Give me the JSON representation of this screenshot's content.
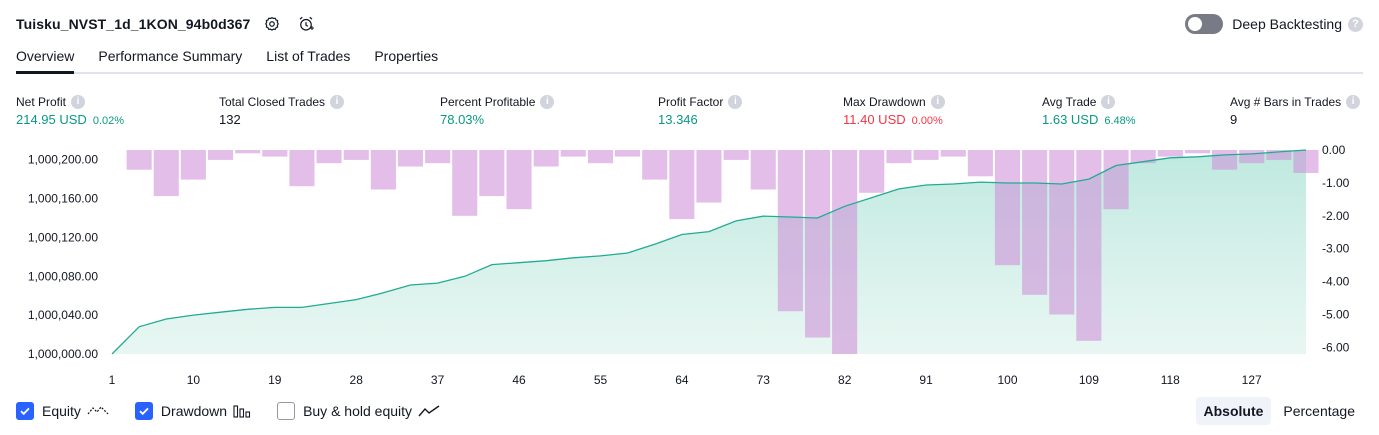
{
  "header": {
    "title": "Tuisku_NVST_1d_1KON_94b0d367",
    "settings_icon": "gear-icon",
    "alert_icon": "alarm-clock-plus-icon",
    "deep_backtesting_label": "Deep Backtesting",
    "deep_backtesting_on": false,
    "help_mark": "?"
  },
  "tabs": [
    {
      "label": "Overview",
      "active": true
    },
    {
      "label": "Performance Summary",
      "active": false
    },
    {
      "label": "List of Trades",
      "active": false
    },
    {
      "label": "Properties",
      "active": false
    }
  ],
  "metrics": {
    "info_mark": "i",
    "net_profit": {
      "label": "Net Profit",
      "value": "214.95 USD",
      "sub": "0.02%"
    },
    "total_closed_trades": {
      "label": "Total Closed Trades",
      "value": "132"
    },
    "percent_profitable": {
      "label": "Percent Profitable",
      "value": "78.03%"
    },
    "profit_factor": {
      "label": "Profit Factor",
      "value": "13.346"
    },
    "max_drawdown": {
      "label": "Max Drawdown",
      "value": "11.40 USD",
      "sub": "0.00%"
    },
    "avg_trade": {
      "label": "Avg Trade",
      "value": "1.63 USD",
      "sub": "6.48%"
    },
    "avg_bars": {
      "label": "Avg # Bars in Trades",
      "value": "9"
    }
  },
  "colors": {
    "positive": "#089981",
    "negative": "#f23645",
    "equity_line": "#22ab94",
    "drawdown_bar": "#ce93d8",
    "accent": "#2962ff"
  },
  "chart_data": {
    "type": "area",
    "title": "",
    "x": [
      1,
      4,
      7,
      10,
      13,
      16,
      19,
      22,
      25,
      28,
      31,
      34,
      37,
      40,
      43,
      46,
      49,
      52,
      55,
      58,
      61,
      64,
      67,
      70,
      73,
      76,
      79,
      82,
      85,
      88,
      91,
      94,
      97,
      100,
      103,
      106,
      109,
      112,
      115,
      118,
      121,
      124,
      127,
      130,
      133
    ],
    "series": [
      {
        "name": "Equity",
        "axis": "left",
        "values": [
          1000000,
          1000028,
          1000036,
          1000040,
          1000043,
          1000046,
          1000048,
          1000048,
          1000052,
          1000056,
          1000063,
          1000071,
          1000073,
          1000080,
          1000092,
          1000094,
          1000096,
          1000099,
          1000101,
          1000104,
          1000113,
          1000123,
          1000126,
          1000137,
          1000142,
          1000141,
          1000140,
          1000152,
          1000161,
          1000170,
          1000174,
          1000175,
          1000177,
          1000176,
          1000176,
          1000175,
          1000180,
          1000194,
          1000198,
          1000202,
          1000203,
          1000205,
          1000206,
          1000208,
          1000210
        ]
      },
      {
        "name": "Drawdown",
        "axis": "right",
        "values": [
          0,
          -0.6,
          -1.4,
          -0.9,
          -0.3,
          -0.1,
          -0.2,
          -1.1,
          -0.4,
          -0.3,
          -1.2,
          -0.5,
          -0.4,
          -2.0,
          -1.4,
          -1.8,
          -0.5,
          -0.2,
          -0.4,
          -0.2,
          -0.9,
          -2.1,
          -1.6,
          -0.3,
          -1.2,
          -4.9,
          -5.7,
          -6.2,
          -1.3,
          -0.4,
          -0.3,
          -0.2,
          -0.8,
          -3.5,
          -4.4,
          -5.0,
          -5.8,
          -1.8,
          -0.4,
          -0.2,
          -0.1,
          -0.6,
          -0.4,
          -0.3,
          -0.7
        ]
      }
    ],
    "left_ticks": [
      "1,000,000.00",
      "1,000,040.00",
      "1,000,080.00",
      "1,000,120.00",
      "1,000,160.00",
      "1,000,200.00"
    ],
    "right_ticks": [
      "0.00",
      "-1.00",
      "-2.00",
      "-3.00",
      "-4.00",
      "-5.00",
      "-6.00"
    ],
    "x_ticks": [
      "1",
      "10",
      "19",
      "28",
      "37",
      "46",
      "55",
      "64",
      "73",
      "82",
      "91",
      "100",
      "109",
      "118",
      "127"
    ],
    "ylim_left": [
      1000000,
      1000210
    ],
    "ylim_right": [
      -6.2,
      0
    ],
    "xlim": [
      1,
      133
    ]
  },
  "legend": [
    {
      "label": "Equity",
      "checked": true,
      "icon": "equity-line-icon"
    },
    {
      "label": "Drawdown",
      "checked": true,
      "icon": "drawdown-bars-icon"
    },
    {
      "label": "Buy & hold equity",
      "checked": false,
      "icon": "buy-hold-line-icon"
    }
  ],
  "view_mode": {
    "absolute_label": "Absolute",
    "percentage_label": "Percentage",
    "active": "absolute"
  }
}
